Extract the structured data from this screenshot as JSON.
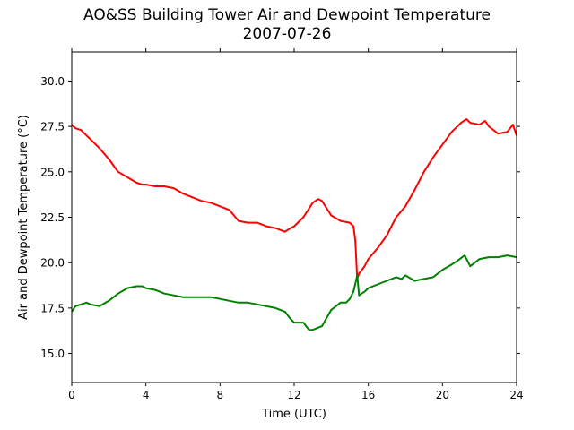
{
  "chart_data": {
    "type": "line",
    "title": "AO&SS Building Tower Air and Dewpoint Temperature",
    "subtitle": "2007-07-26",
    "xlabel": "Time (UTC)",
    "ylabel": "Air and Dewpoint Temperature (°C)",
    "xlim": [
      0,
      24
    ],
    "ylim": [
      13.4,
      31.6
    ],
    "xticks": [
      0,
      4,
      8,
      12,
      16,
      20,
      24
    ],
    "xtick_labels": [
      "0",
      "4",
      "8",
      "12",
      "16",
      "20",
      "24"
    ],
    "yticks": [
      15.0,
      17.5,
      20.0,
      22.5,
      25.0,
      27.5,
      30.0
    ],
    "ytick_labels": [
      "15.0",
      "17.5",
      "20.0",
      "22.5",
      "25.0",
      "27.5",
      "30.0"
    ],
    "grid": false,
    "legend": false,
    "series": [
      {
        "color": "#ff0000",
        "x": [
          0,
          0.2,
          0.5,
          0.8,
          1.0,
          1.5,
          2.0,
          2.5,
          3.0,
          3.5,
          3.8,
          4.0,
          4.5,
          5.0,
          5.5,
          6.0,
          6.5,
          7.0,
          7.5,
          8.0,
          8.5,
          9.0,
          9.5,
          10.0,
          10.5,
          11.0,
          11.5,
          11.8,
          12.0,
          12.5,
          13.0,
          13.3,
          13.5,
          14.0,
          14.5,
          15.0,
          15.2,
          15.3,
          15.4,
          15.5,
          15.8,
          16.0,
          16.5,
          17.0,
          17.5,
          18.0,
          18.5,
          19.0,
          19.5,
          20.0,
          20.5,
          21.0,
          21.3,
          21.5,
          22.0,
          22.3,
          22.5,
          23.0,
          23.5,
          23.8,
          24.0
        ],
        "y": [
          27.6,
          27.4,
          27.3,
          27.0,
          26.8,
          26.3,
          25.7,
          25.0,
          24.7,
          24.4,
          24.3,
          24.3,
          24.2,
          24.2,
          24.1,
          23.8,
          23.6,
          23.4,
          23.3,
          23.1,
          22.9,
          22.3,
          22.2,
          22.2,
          22.0,
          21.9,
          21.7,
          21.9,
          22.0,
          22.5,
          23.3,
          23.5,
          23.4,
          22.6,
          22.3,
          22.2,
          22.0,
          21.2,
          19.1,
          19.4,
          19.8,
          20.2,
          20.8,
          21.5,
          22.5,
          23.1,
          24.0,
          25.0,
          25.8,
          26.5,
          27.2,
          27.7,
          27.9,
          27.7,
          27.6,
          27.8,
          27.5,
          27.1,
          27.2,
          27.6,
          27.0
        ]
      },
      {
        "color": "#008000",
        "x": [
          0,
          0.2,
          0.5,
          0.8,
          1.0,
          1.5,
          2.0,
          2.5,
          3.0,
          3.5,
          3.8,
          4.0,
          4.5,
          5.0,
          5.5,
          6.0,
          6.5,
          7.0,
          7.5,
          8.0,
          8.5,
          9.0,
          9.5,
          10.0,
          10.5,
          11.0,
          11.5,
          11.8,
          12.0,
          12.5,
          12.8,
          13.0,
          13.5,
          14.0,
          14.5,
          14.8,
          15.0,
          15.2,
          15.4,
          15.5,
          15.8,
          16.0,
          16.5,
          17.0,
          17.5,
          17.8,
          18.0,
          18.5,
          19.0,
          19.5,
          20.0,
          20.5,
          20.8,
          21.2,
          21.5,
          22.0,
          22.5,
          23.0,
          23.5,
          24.0
        ],
        "y": [
          17.3,
          17.6,
          17.7,
          17.8,
          17.7,
          17.6,
          17.9,
          18.3,
          18.6,
          18.7,
          18.7,
          18.6,
          18.5,
          18.3,
          18.2,
          18.1,
          18.1,
          18.1,
          18.1,
          18.0,
          17.9,
          17.8,
          17.8,
          17.7,
          17.6,
          17.5,
          17.3,
          16.9,
          16.7,
          16.7,
          16.3,
          16.3,
          16.5,
          17.4,
          17.8,
          17.8,
          18.0,
          18.4,
          19.3,
          18.2,
          18.4,
          18.6,
          18.8,
          19.0,
          19.2,
          19.1,
          19.3,
          19.0,
          19.1,
          19.2,
          19.6,
          19.9,
          20.1,
          20.4,
          19.8,
          20.2,
          20.3,
          20.3,
          20.4,
          20.3
        ]
      }
    ]
  }
}
